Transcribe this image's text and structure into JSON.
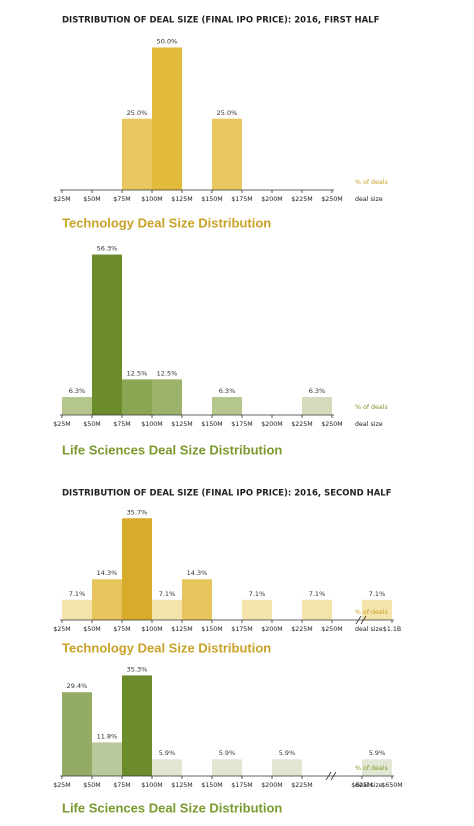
{
  "chart_data": [
    {
      "type": "histogram",
      "heading": "DISTRIBUTION OF DEAL SIZE (FINAL IPO PRICE): 2016, FIRST HALF",
      "title": "Technology Deal Size Distribution",
      "title_color": "#c9a227",
      "bins": [
        "$25M",
        "$50M",
        "$75M",
        "$100M",
        "$125M",
        "$150M",
        "$175M",
        "$200M",
        "$225M",
        "$250M"
      ],
      "values": [
        null,
        null,
        25.0,
        50.0,
        null,
        25.0,
        null,
        null,
        null
      ],
      "value_labels": [
        null,
        null,
        "25.0%",
        "50.0%",
        null,
        "25.0%",
        null,
        null,
        null
      ],
      "colors": [
        null,
        null,
        "#e8c75e",
        "#e2bb3a",
        null,
        "#e8c75e",
        null,
        null,
        null
      ],
      "unit_label": "% of deals",
      "x_label": "deal size"
    },
    {
      "type": "histogram",
      "title": "Life Sciences Deal Size Distribution",
      "title_color": "#7a9a2e",
      "bins": [
        "$25M",
        "$50M",
        "$75M",
        "$100M",
        "$125M",
        "$150M",
        "$175M",
        "$200M",
        "$225M",
        "$250M"
      ],
      "values": [
        6.3,
        56.3,
        12.5,
        12.5,
        null,
        6.3,
        null,
        null,
        6.3
      ],
      "value_labels": [
        "6.3%",
        "56.3%",
        "12.5%",
        "12.5%",
        null,
        "6.3%",
        null,
        null,
        "6.3%"
      ],
      "colors": [
        "#b5c68c",
        "#6c8c2c",
        "#8ba653",
        "#9cb26a",
        null,
        "#b5c68c",
        null,
        null,
        "#d3dbbb"
      ],
      "unit_label": "% of deals",
      "x_label": "deal size"
    },
    {
      "type": "histogram",
      "heading": "DISTRIBUTION OF DEAL SIZE (FINAL IPO PRICE): 2016, SECOND HALF",
      "title": "Technology Deal Size Distribution",
      "title_color": "#c9a227",
      "bins": [
        "$25M",
        "$50M",
        "$75M",
        "$100M",
        "$125M",
        "$150M",
        "$175M",
        "$200M",
        "$225M",
        "$250M",
        null,
        "$1.1B"
      ],
      "values": [
        7.1,
        14.3,
        35.7,
        7.1,
        14.3,
        null,
        7.1,
        null,
        7.1,
        null,
        7.1
      ],
      "value_labels": [
        "7.1%",
        "14.3%",
        "35.7%",
        "7.1%",
        "14.3%",
        null,
        "7.1%",
        null,
        "7.1%",
        null,
        "7.1%"
      ],
      "colors": [
        "#f4e4ab",
        "#e7c55c",
        "#d8ab2a",
        "#f4e4ab",
        "#e7c55c",
        null,
        "#f4e4ab",
        null,
        "#f4e4ab",
        null,
        "#f4e4ab"
      ],
      "unit_label": "% of deals",
      "x_label": "deal size"
    },
    {
      "type": "histogram",
      "title": "Life Sciences Deal Size Distribution",
      "title_color": "#7a9a2e",
      "bins": [
        "$25M",
        "$50M",
        "$75M",
        "$100M",
        "$125M",
        "$150M",
        "$175M",
        "$200M",
        "$225M",
        null,
        "$625M",
        "$650M"
      ],
      "values": [
        29.4,
        11.8,
        35.3,
        5.9,
        null,
        5.9,
        null,
        5.9,
        null,
        null,
        5.9
      ],
      "value_labels": [
        "29.4%",
        "11.8%",
        "35.3%",
        "5.9%",
        null,
        "5.9%",
        null,
        "5.9%",
        null,
        null,
        "5.9%"
      ],
      "colors": [
        "#93ab64",
        "#bac99c",
        "#6c8c2c",
        "#e2e7d4",
        null,
        "#e2e7d4",
        null,
        "#e2e7d4",
        null,
        null,
        "#e2e7d4"
      ],
      "unit_label": "% of deals",
      "x_label": "deal size"
    }
  ]
}
